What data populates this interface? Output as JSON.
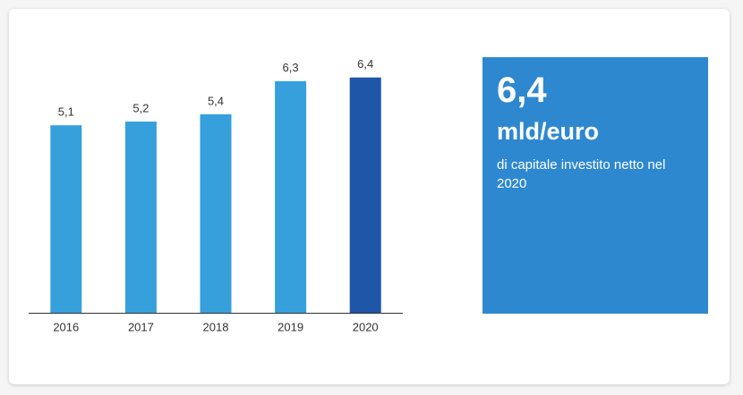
{
  "chart_data": {
    "type": "bar",
    "categories": [
      "2016",
      "2017",
      "2018",
      "2019",
      "2020"
    ],
    "values": [
      5.1,
      5.2,
      5.4,
      6.3,
      6.4
    ],
    "value_labels": [
      "5,1",
      "5,2",
      "5,4",
      "6,3",
      "6,4"
    ],
    "colors": [
      "#35a0dc",
      "#35a0dc",
      "#35a0dc",
      "#35a0dc",
      "#1f56a8"
    ],
    "ylim": [
      0,
      7
    ]
  },
  "highlight": {
    "value": "6,4",
    "unit": "mld/euro",
    "description": "di capitale investito netto nel 2020"
  }
}
